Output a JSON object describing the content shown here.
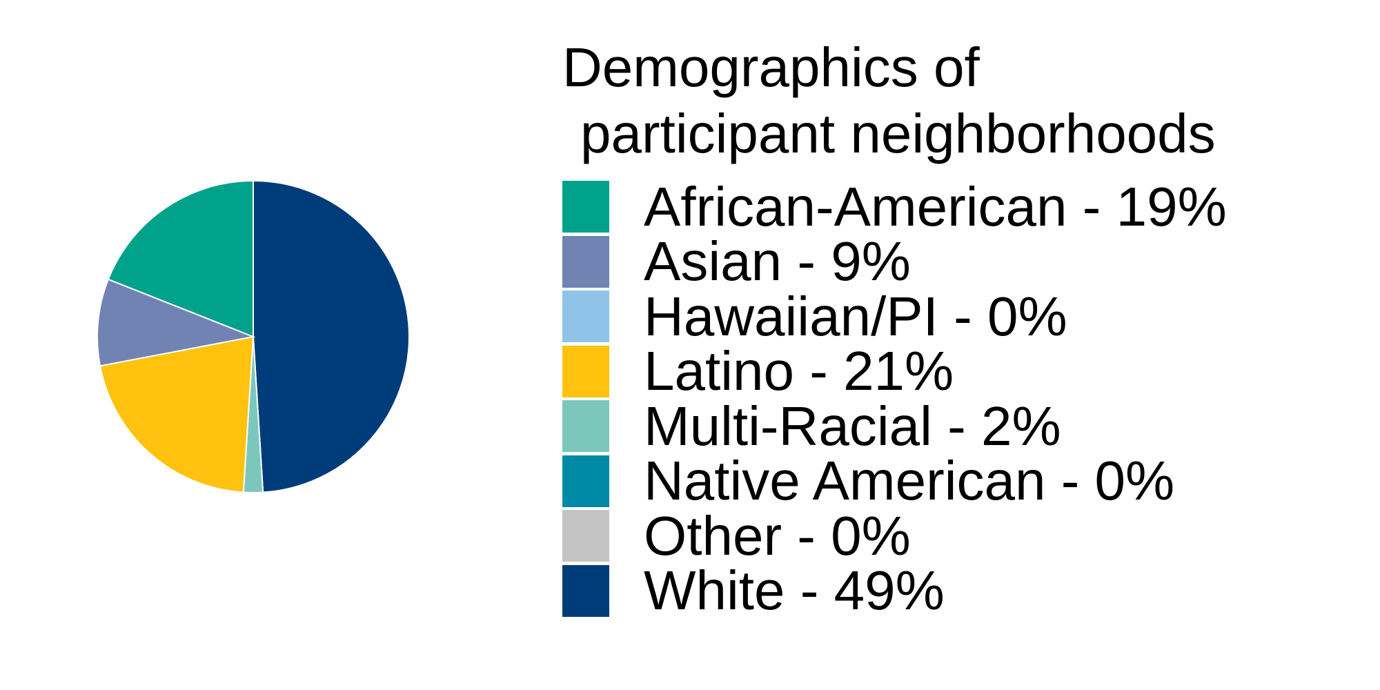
{
  "chart_data": {
    "type": "pie",
    "title": "Demographics of participant neighborhoods",
    "title_lines": [
      "Demographics of",
      "participant neighborhoods"
    ],
    "legend_placement": "right",
    "start_angle_deg": 0,
    "direction": "clockwise",
    "slices": [
      {
        "label": "White",
        "value": 49,
        "legend": "White - 49%",
        "color": "#003c7a"
      },
      {
        "label": "Multi-Racial",
        "value": 2,
        "legend": "Multi-Racial - 2%",
        "color": "#7cc7bc"
      },
      {
        "label": "Latino",
        "value": 21,
        "legend": "Latino - 21%",
        "color": "#ffc20e"
      },
      {
        "label": "Asian",
        "value": 9,
        "legend": "Asian - 9%",
        "color": "#7183b3"
      },
      {
        "label": "African-American",
        "value": 19,
        "legend": "African-American - 19%",
        "color": "#00a28b"
      }
    ],
    "legend": [
      {
        "text": "African-American - 19%",
        "color": "#00a28b"
      },
      {
        "text": "Asian - 9%",
        "color": "#7183b3"
      },
      {
        "text": "Hawaiian/PI - 0%",
        "color": "#8fc4e8"
      },
      {
        "text": "Latino - 21%",
        "color": "#ffc20e"
      },
      {
        "text": "Multi-Racial - 2%",
        "color": "#7cc7bc"
      },
      {
        "text": "Native American - 0%",
        "color": "#008aa6"
      },
      {
        "text": "Other - 0%",
        "color": "#c4c4c4"
      },
      {
        "text": "White - 49%",
        "color": "#003c7a"
      }
    ]
  }
}
